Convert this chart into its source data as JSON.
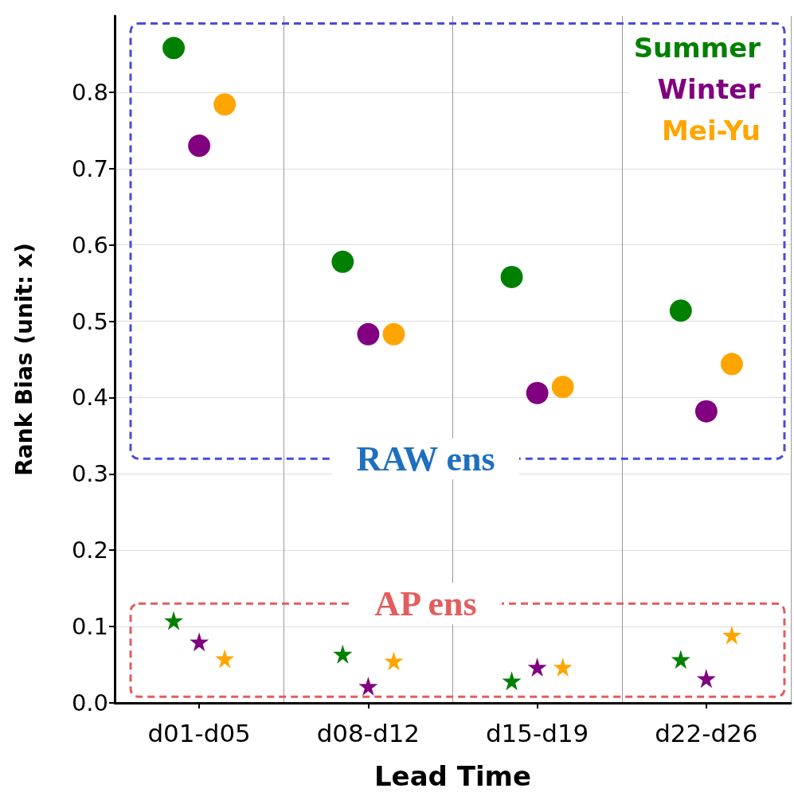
{
  "chart_data": {
    "type": "scatter",
    "xlabel": "Lead Time",
    "ylabel": "Rank Bias (unit: x)",
    "categories": [
      "d01-d05",
      "d08-d12",
      "d15-d19",
      "d22-d26"
    ],
    "ylim": [
      0,
      0.9
    ],
    "yticks": [
      {
        "value": 0,
        "label": "0.0"
      },
      0.1,
      0.2,
      0.3,
      0.4,
      0.5,
      0.6,
      0.7,
      0.8
    ],
    "grid": true,
    "legend": "top right",
    "annotations": [
      "RAW ens",
      "AP ens"
    ],
    "series": [
      {
        "name": "Summer",
        "color": "#008000",
        "marker": "circle",
        "values": [
          0.858,
          0.578,
          0.558,
          0.514
        ]
      },
      {
        "name": "Winter",
        "color": "#800080",
        "marker": "circle",
        "values": [
          0.73,
          0.483,
          0.406,
          0.382
        ]
      },
      {
        "name": "Mei-Yu",
        "color": "#ffa500",
        "marker": "circle",
        "values": [
          0.784,
          0.483,
          0.414,
          0.444
        ]
      },
      {
        "color": "#008000",
        "marker": "star",
        "values": [
          0.108,
          0.064,
          0.029,
          0.057
        ]
      },
      {
        "color": "#800080",
        "marker": "star",
        "values": [
          0.08,
          0.022,
          0.047,
          0.032
        ]
      },
      {
        "color": "#ffa500",
        "marker": "star",
        "values": [
          0.058,
          0.055,
          0.047,
          0.089
        ]
      }
    ]
  }
}
